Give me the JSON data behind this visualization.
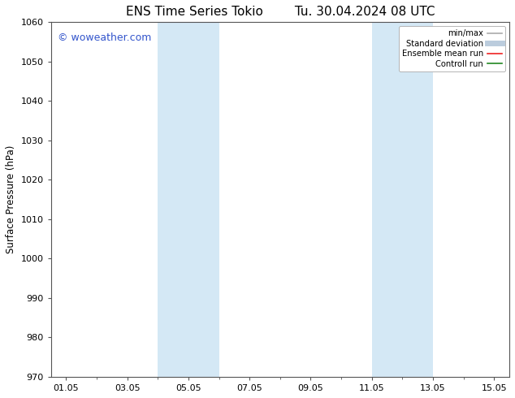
{
  "title_left": "ENS Time Series Tokio",
  "title_right": "Tu. 30.04.2024 08 UTC",
  "ylabel": "Surface Pressure (hPa)",
  "ylim": [
    970,
    1060
  ],
  "yticks": [
    970,
    980,
    990,
    1000,
    1010,
    1020,
    1030,
    1040,
    1050,
    1060
  ],
  "xtick_labels": [
    "01.05",
    "03.05",
    "05.05",
    "07.05",
    "09.05",
    "11.05",
    "13.05",
    "15.05"
  ],
  "xtick_positions": [
    1,
    3,
    5,
    7,
    9,
    11,
    13,
    15
  ],
  "xlim": [
    0.5,
    15.5
  ],
  "shade_bands": [
    {
      "x_start": 4.0,
      "x_end": 5.0
    },
    {
      "x_start": 5.0,
      "x_end": 6.0
    },
    {
      "x_start": 11.0,
      "x_end": 12.0
    },
    {
      "x_start": 12.0,
      "x_end": 13.0
    }
  ],
  "shade_colors": [
    "#cce0f0",
    "#ddeaf8",
    "#cce0f0",
    "#ddeaf8"
  ],
  "shade_color": "#d4e8f5",
  "bg_color": "#ffffff",
  "plot_bg_color": "#ffffff",
  "watermark_text": "© woweather.com",
  "watermark_color": "#3355cc",
  "legend_items": [
    {
      "label": "min/max",
      "color": "#aaaaaa",
      "lw": 1.2,
      "style": "solid"
    },
    {
      "label": "Standard deviation",
      "color": "#bbccdd",
      "lw": 5,
      "style": "solid"
    },
    {
      "label": "Ensemble mean run",
      "color": "#ee2222",
      "lw": 1.2,
      "style": "solid"
    },
    {
      "label": "Controll run",
      "color": "#228822",
      "lw": 1.2,
      "style": "solid"
    }
  ],
  "title_fontsize": 11,
  "axis_fontsize": 8.5,
  "tick_fontsize": 8,
  "watermark_fontsize": 9
}
